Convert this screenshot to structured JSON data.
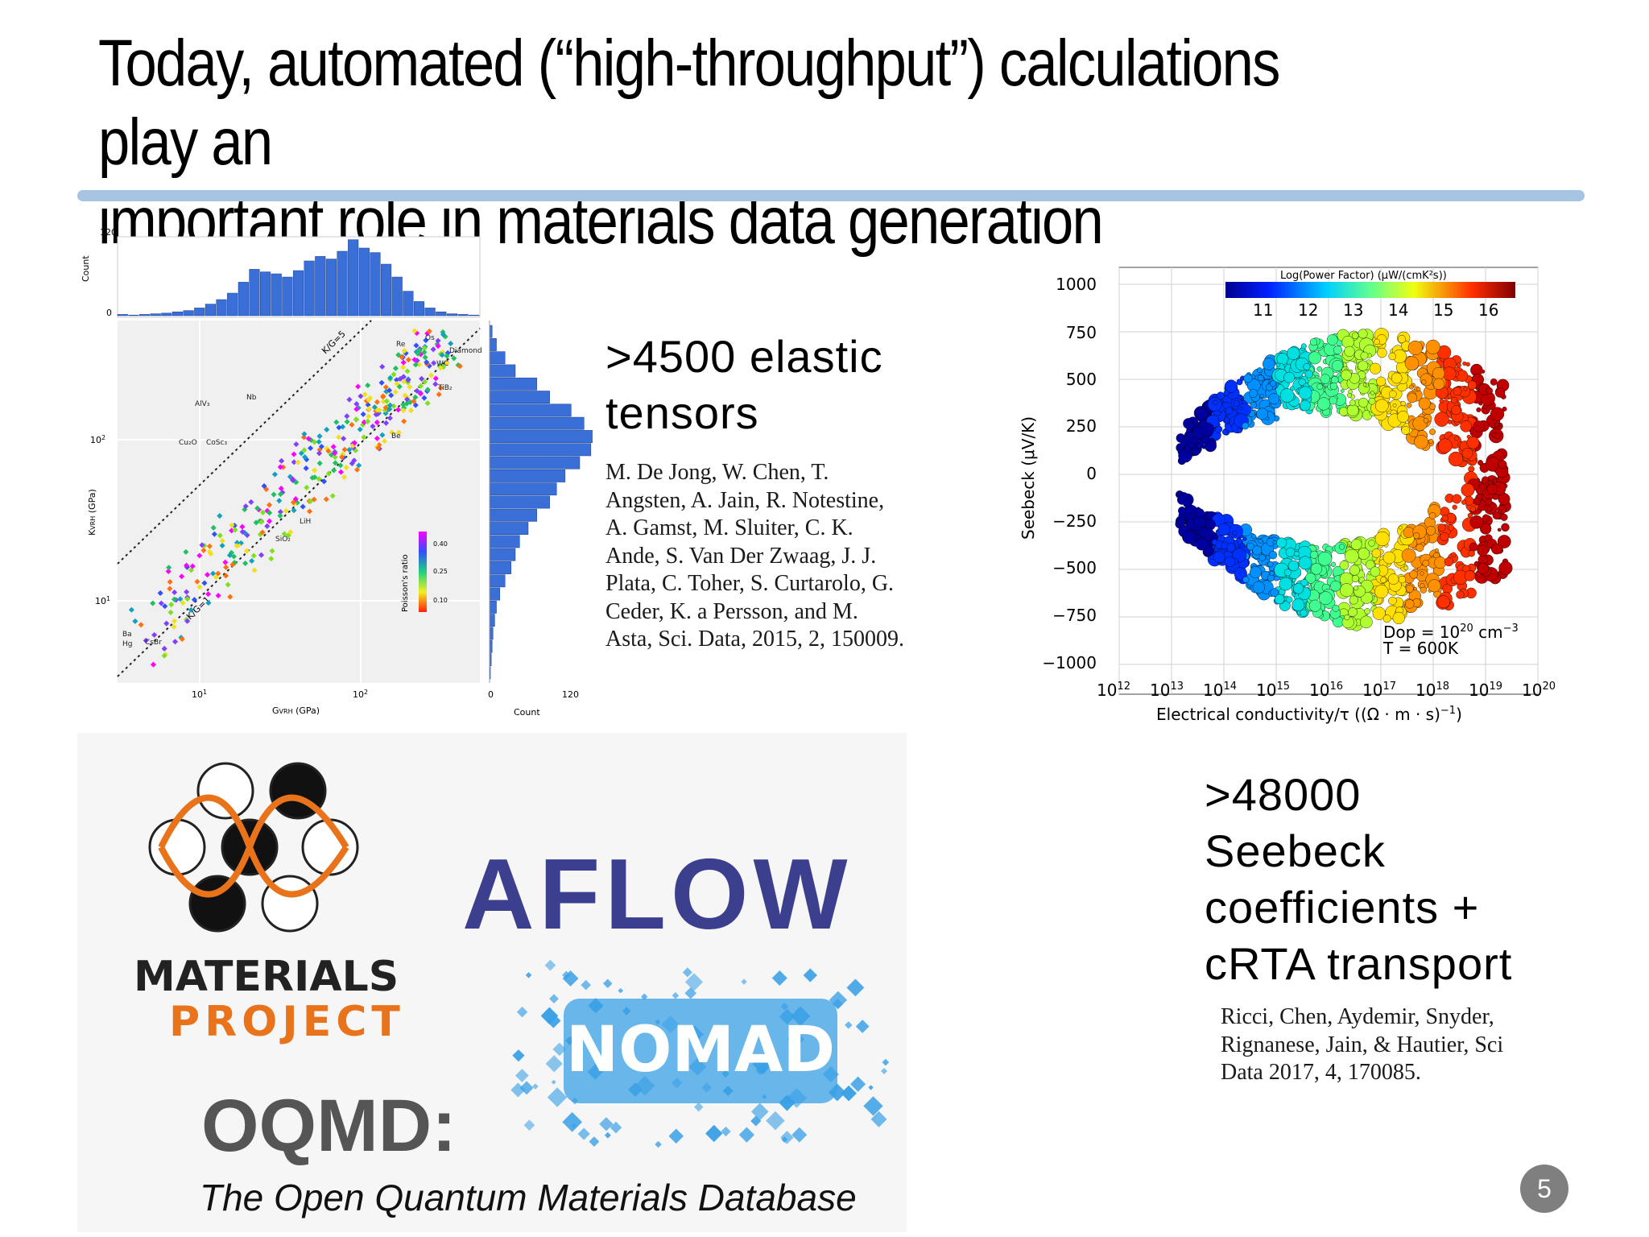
{
  "slide": {
    "title": "Today, automated (“high-throughput”) calculations play an\nimportant role in materials data generation",
    "page_number": "5"
  },
  "elastic": {
    "headline": ">4500 elastic tensors",
    "citation": "M. De Jong, W. Chen, T. Angsten, A. Jain, R. Notestine, A. Gamst, M. Sluiter, C. K. Ande, S. Van Der Zwaag, J. J. Plata, C. Toher, S. Curtarolo, G. Ceder, K. a Persson, and M. Asta, Sci. Data, 2015, 2, 150009."
  },
  "seebeck": {
    "headline": ">48000 Seebeck coefficients + cRTA transport",
    "citation": "Ricci, Chen, Aydemir, Snyder, Rignanese, Jain, & Hautier, Sci Data 2017, 4, 170085."
  },
  "logos": {
    "materials_project": [
      "MATERIALS",
      "PROJECT"
    ],
    "aflow": "AFLOW",
    "nomad": "NOMAD",
    "oqmd": "OQMD:",
    "oqmd_subtitle": "The Open Quantum Materials Database"
  },
  "colors": {
    "title_rule": "#a7c4e2",
    "histogram": "#3a6fd8",
    "aflow": "#3b3f8e",
    "materials_orange": "#e8731a",
    "nomad_blue": "#3aa0e6"
  },
  "chart_data": [
    {
      "type": "scatter",
      "xlabel": "G_VRH (GPa)",
      "ylabel": "K_VRH (GPa)",
      "xscale": "log",
      "yscale": "log",
      "x_ticks": [
        "10^1",
        "10^2"
      ],
      "y_ticks": [
        "10^1",
        "10^2"
      ],
      "guide_lines": [
        "K/G=5",
        "K/G=1"
      ],
      "colorbar": {
        "label": "Poisson's ratio",
        "ticks": [
          "0.40",
          "0.25",
          "0.10"
        ]
      },
      "annotations": [
        "Re",
        "Os",
        "Diamond",
        "WC",
        "TiB2",
        "Be",
        "AlV3",
        "Nb",
        "Cu2O",
        "CoSc3",
        "LiH",
        "SiO2",
        "Ba",
        "Hg",
        "CsBr",
        "Ir"
      ],
      "top_histogram": {
        "ylabel": "Count",
        "ylim": [
          0,
          120
        ],
        "values": [
          2,
          1,
          2,
          3,
          4,
          6,
          8,
          12,
          18,
          25,
          35,
          52,
          72,
          68,
          65,
          60,
          70,
          85,
          92,
          88,
          100,
          118,
          105,
          98,
          80,
          60,
          38,
          22,
          12,
          6,
          3,
          2,
          1
        ]
      },
      "right_histogram": {
        "xlabel": "Count",
        "xlim": [
          0,
          120
        ],
        "values": [
          3,
          8,
          18,
          30,
          55,
          70,
          95,
          110,
          125,
          118,
          105,
          88,
          78,
          70,
          55,
          45,
          35,
          30,
          25,
          18,
          12,
          8,
          6,
          4,
          3,
          2,
          1
        ]
      }
    },
    {
      "type": "scatter",
      "xlabel": "Electrical conductivity/τ ((Ω·m·s)⁻¹)",
      "ylabel": "Seebeck (μV/K)",
      "xscale": "log",
      "x_ticks": [
        "10^12",
        "10^13",
        "10^14",
        "10^15",
        "10^16",
        "10^17",
        "10^18",
        "10^19",
        "10^20"
      ],
      "y_ticks": [
        "1000",
        "750",
        "500",
        "250",
        "0",
        "−250",
        "−500",
        "−750",
        "−1000"
      ],
      "xlim_exponent": [
        12,
        20
      ],
      "ylim": [
        -1000,
        1000
      ],
      "colorbar": {
        "label": "Log(Power Factor) (μW/(cmK²s))",
        "ticks": [
          "11",
          "12",
          "13",
          "14",
          "15",
          "16"
        ]
      },
      "annotation": [
        "Dop = 10",
        "20",
        " cm",
        "−3",
        "T = 600K"
      ]
    }
  ]
}
